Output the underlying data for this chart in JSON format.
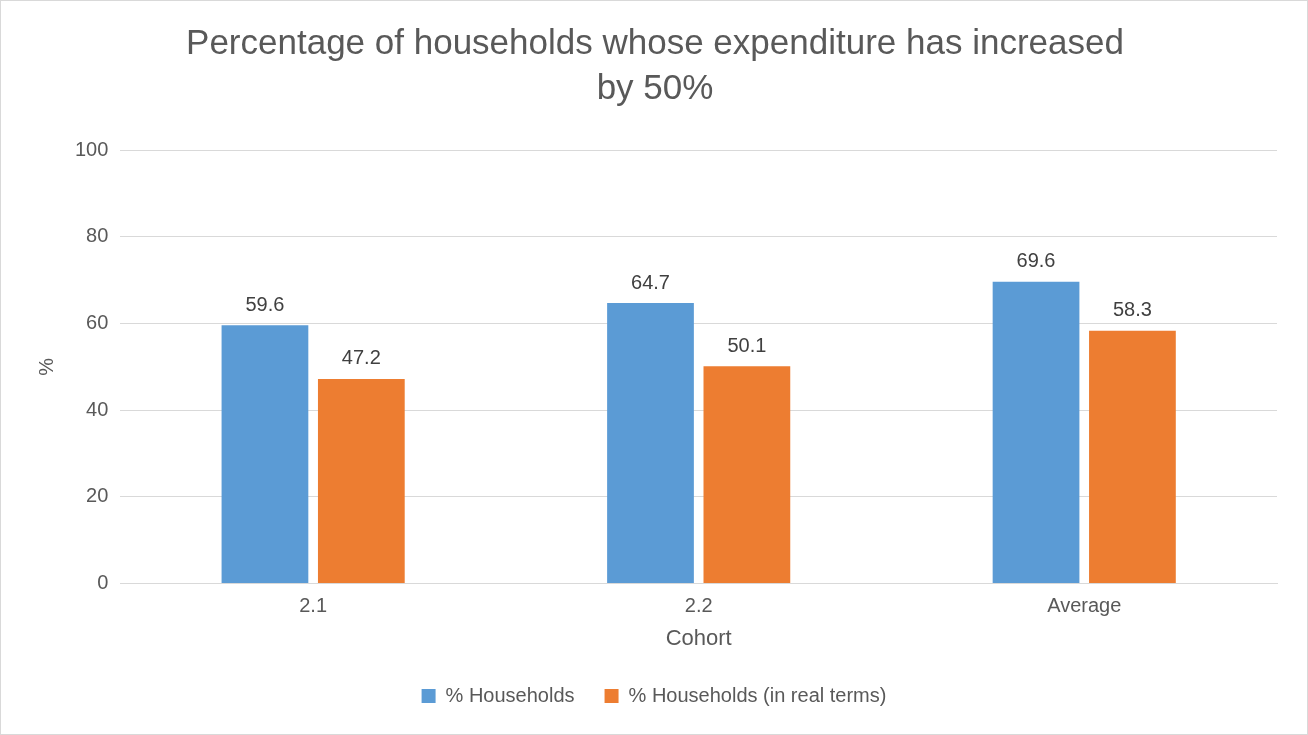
{
  "chart_data": {
    "type": "bar",
    "title": "Percentage of households whose expenditure has increased by 50%",
    "xlabel": "Cohort",
    "ylabel": "%",
    "categories": [
      "2.1",
      "2.2",
      "Average"
    ],
    "series": [
      {
        "name": "% Households",
        "color": "#5b9bd5",
        "values": [
          59.6,
          64.7,
          69.6
        ]
      },
      {
        "name": "% Households (in real terms)",
        "color": "#ed7d31",
        "values": [
          47.2,
          50.1,
          58.3
        ]
      }
    ],
    "ylim": [
      0,
      100
    ],
    "yticks": [
      0,
      20,
      40,
      60,
      80,
      100
    ],
    "grid": "y",
    "legend": "bottom",
    "data_labels": true
  }
}
